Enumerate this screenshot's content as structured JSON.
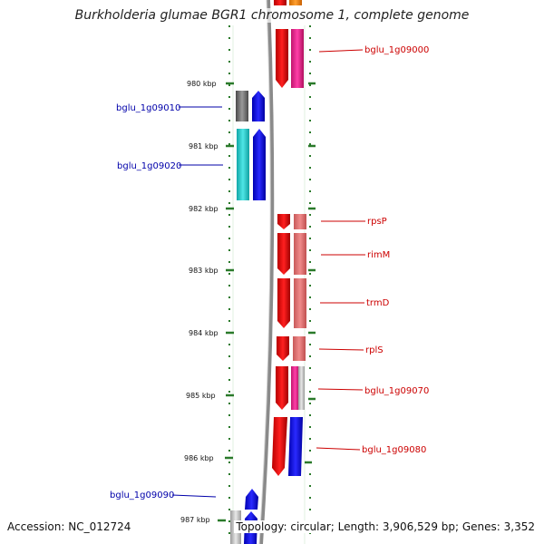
{
  "title": "Burkholderia glumae BGR1 chromosome 1, complete genome",
  "footer": {
    "accession": "Accession: NC_012724",
    "summary": "Topology: circular; Length: 3,906,529 bp; Genes: 3,352"
  },
  "colors": {
    "forward_label": "#cc0000",
    "reverse_label": "#0000aa",
    "dot_track": "#2a7a2a",
    "backbone": "#8a8a8a"
  },
  "scale_ticks": [
    {
      "label": "980 kbp"
    },
    {
      "label": "981 kbp"
    },
    {
      "label": "982 kbp"
    },
    {
      "label": "983 kbp"
    },
    {
      "label": "984 kbp"
    },
    {
      "label": "985 kbp"
    },
    {
      "label": "986 kbp"
    },
    {
      "label": "987 kbp"
    }
  ],
  "gene_labels": [
    {
      "text": "bglu_1g09000",
      "strand": "forward"
    },
    {
      "text": "bglu_1g09010",
      "strand": "reverse"
    },
    {
      "text": "bglu_1g09020",
      "strand": "reverse"
    },
    {
      "text": "rpsP",
      "strand": "forward"
    },
    {
      "text": "rimM",
      "strand": "forward"
    },
    {
      "text": "trmD",
      "strand": "forward"
    },
    {
      "text": "rplS",
      "strand": "forward"
    },
    {
      "text": "bglu_1g09070",
      "strand": "forward"
    },
    {
      "text": "bglu_1g09080",
      "strand": "forward"
    },
    {
      "text": "bglu_1g09090",
      "strand": "reverse"
    }
  ]
}
